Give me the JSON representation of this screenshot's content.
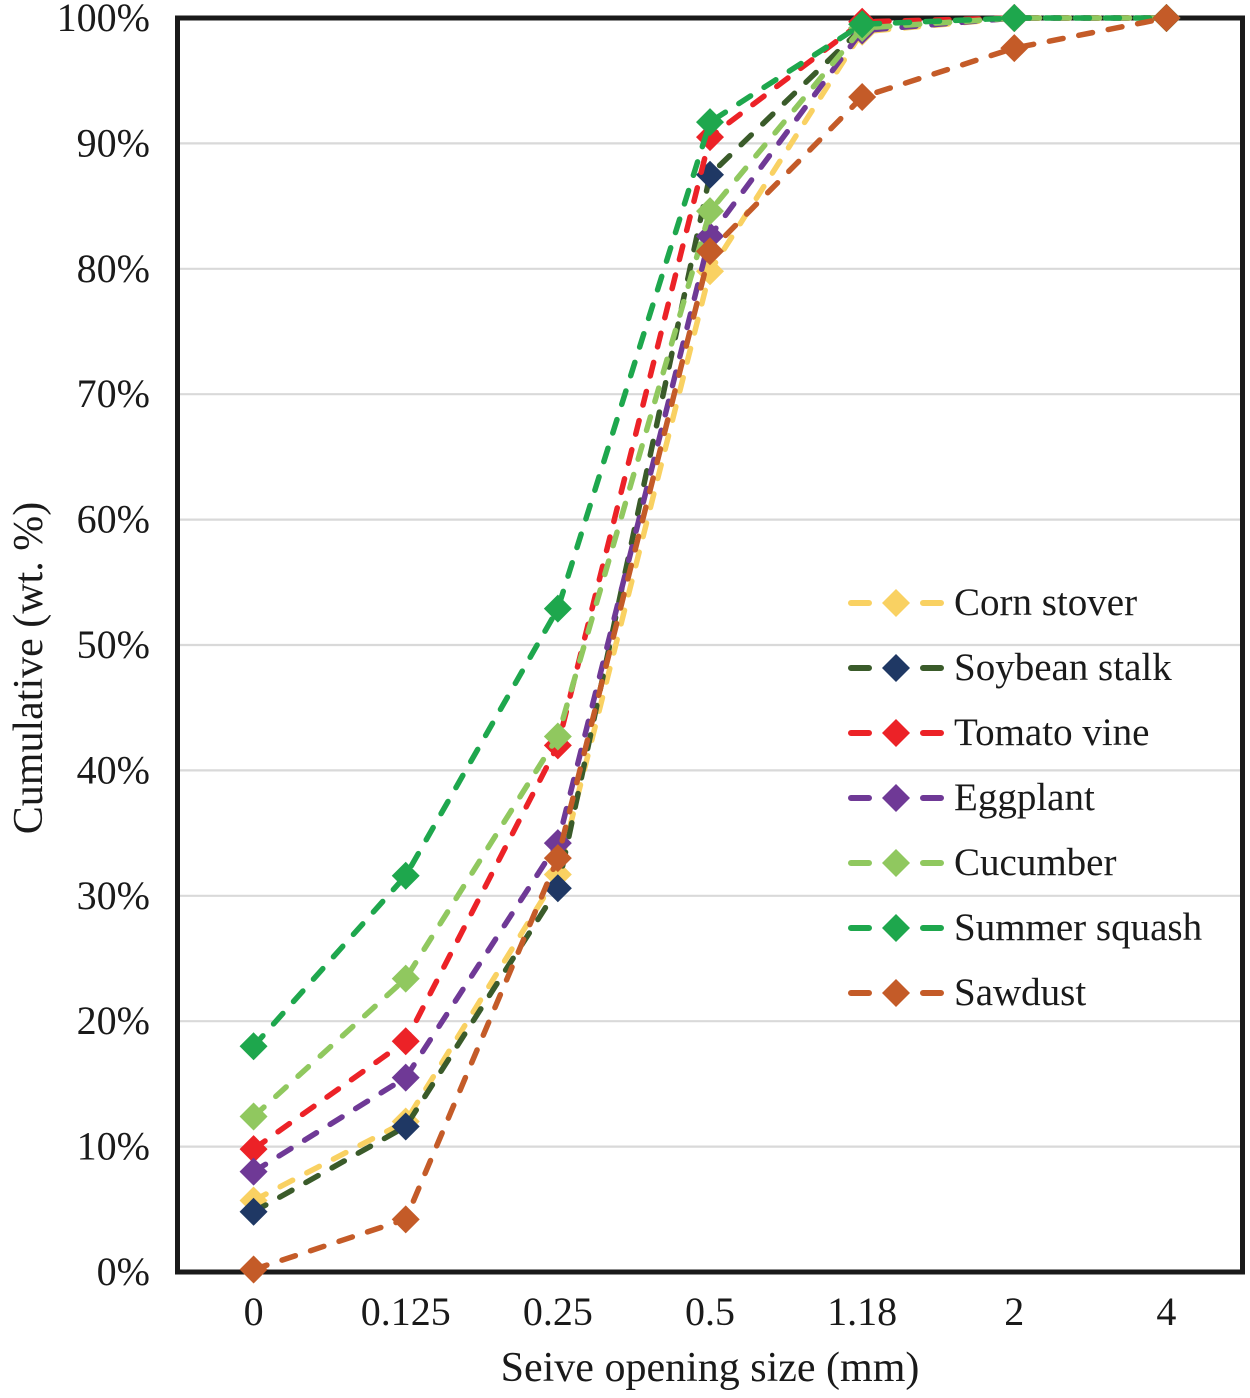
{
  "chart_data": {
    "type": "line",
    "title": "",
    "xlabel": "Seive opening size (mm)",
    "ylabel": "Cumulative (wt. %)",
    "categories": [
      "0",
      "0.125",
      "0.25",
      "0.5",
      "1.18",
      "2",
      "4"
    ],
    "y_tick_labels": [
      "0%",
      "10%",
      "20%",
      "30%",
      "40%",
      "50%",
      "60%",
      "70%",
      "80%",
      "90%",
      "100%"
    ],
    "ylim": [
      0,
      100
    ],
    "grid": "horizontal",
    "grid_color": "#d9d9d9",
    "border_color": "#1a1a1a",
    "text_color": "#1a1a1a",
    "line_style": "dashed",
    "marker": "diamond",
    "legend_position": "inside-right",
    "series": [
      {
        "name": "Corn stover",
        "color": "#f9d162",
        "marker_color": "#f9d162",
        "values": [
          5.7,
          12.0,
          31.7,
          79.8,
          98.9,
          100,
          100
        ]
      },
      {
        "name": "Soybean stalk",
        "color": "#3a5b2a",
        "marker_color": "#1f3864",
        "values": [
          4.8,
          11.6,
          30.6,
          87.5,
          99.2,
          100,
          100
        ]
      },
      {
        "name": "Tomato vine",
        "color": "#ec2227",
        "marker_color": "#ec2227",
        "values": [
          9.8,
          18.4,
          42.0,
          90.5,
          99.7,
          100,
          100
        ]
      },
      {
        "name": "Eggplant",
        "color": "#6f3996",
        "marker_color": "#6f3996",
        "values": [
          8.0,
          15.5,
          34.2,
          82.6,
          99.0,
          100,
          100
        ]
      },
      {
        "name": "Cucumber",
        "color": "#90c85f",
        "marker_color": "#90c85f",
        "values": [
          12.4,
          23.4,
          42.7,
          84.6,
          99.2,
          100,
          100
        ]
      },
      {
        "name": "Summer squash",
        "color": "#1ea74d",
        "marker_color": "#1ea74d",
        "values": [
          18.0,
          31.6,
          52.9,
          91.7,
          99.5,
          100,
          100
        ]
      },
      {
        "name": "Sawdust",
        "color": "#c45b28",
        "marker_color": "#c45b28",
        "values": [
          0.2,
          4.2,
          33.0,
          81.4,
          93.7,
          97.6,
          100
        ]
      }
    ]
  }
}
